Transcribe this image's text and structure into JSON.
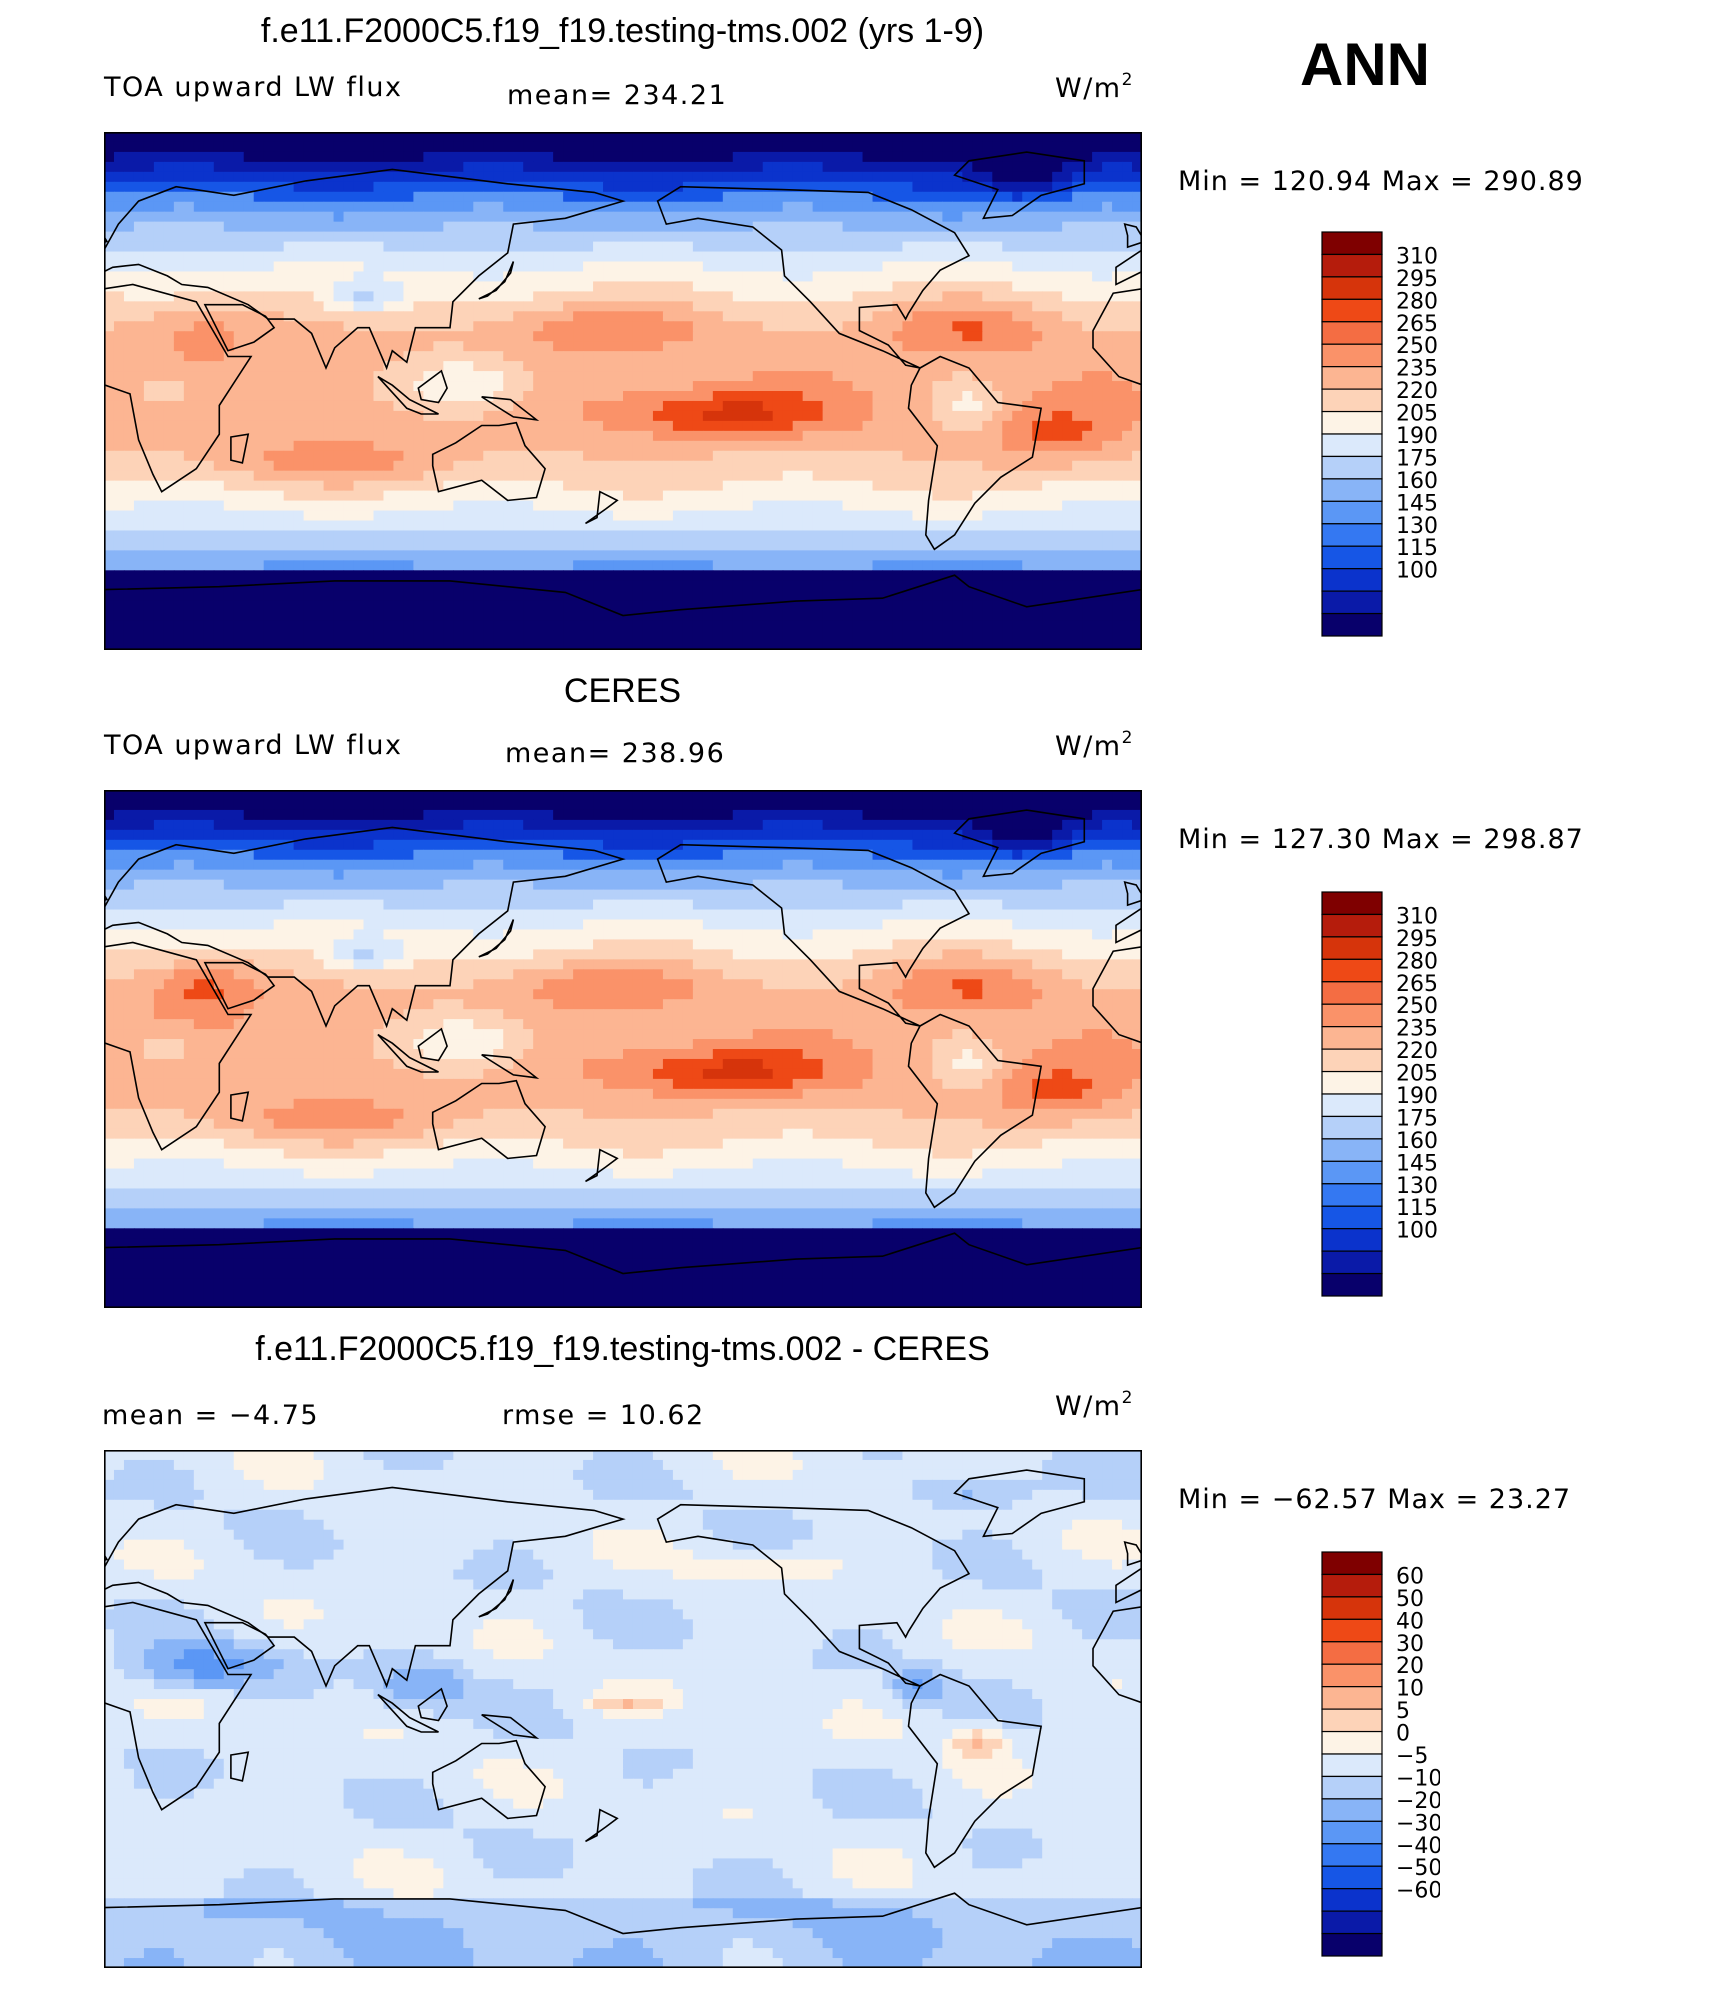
{
  "header": {
    "season": "ANN"
  },
  "colors": {
    "abs_levels": [
      "#08006b",
      "#0a1aa8",
      "#0b33cc",
      "#1656e6",
      "#3478f2",
      "#5b97f5",
      "#88b4f7",
      "#b5d0f9",
      "#dbe9fb",
      "#fdf3e6",
      "#fdd3b8",
      "#fcb592",
      "#fa9269",
      "#f46d43",
      "#ee4916",
      "#d6340b",
      "#b51c0c",
      "#7f0000"
    ],
    "diff_levels": [
      "#08006b",
      "#0a1aa8",
      "#0b33cc",
      "#1656e6",
      "#3478f2",
      "#5b97f5",
      "#88b4f7",
      "#b5d0f9",
      "#dbe9fb",
      "#fdf3e6",
      "#fdd3b8",
      "#fcb592",
      "#fa9269",
      "#f46d43",
      "#ee4916",
      "#d6340b",
      "#b51c0c",
      "#7f0000"
    ],
    "land_outline": "#000000"
  },
  "chart_data": [
    {
      "type": "heatmap",
      "title": "f.e11.F2000C5.f19_f19.testing-tms.002 (yrs 1-9)",
      "left_label": "TOA upward LW flux",
      "center_label": "mean=  234.21",
      "units": "W/m",
      "units_sup": "2",
      "minmax_text": "Min  =  120.94  Max  =  290.89",
      "min": 120.94,
      "max": 290.89,
      "mean": 234.21,
      "colorbar_labels": [
        "310",
        "295",
        "280",
        "265",
        "250",
        "235",
        "220",
        "205",
        "190",
        "175",
        "160",
        "145",
        "130",
        "115",
        "100"
      ],
      "colorbar_levels": [
        100,
        115,
        130,
        145,
        160,
        175,
        190,
        205,
        220,
        235,
        250,
        265,
        280,
        295,
        310
      ]
    },
    {
      "type": "heatmap",
      "title": "CERES",
      "left_label": "TOA upward LW flux",
      "center_label": "mean=  238.96",
      "units": "W/m",
      "units_sup": "2",
      "minmax_text": "Min  =  127.30  Max  =  298.87",
      "min": 127.3,
      "max": 298.87,
      "mean": 238.96,
      "colorbar_labels": [
        "310",
        "295",
        "280",
        "265",
        "250",
        "235",
        "220",
        "205",
        "190",
        "175",
        "160",
        "145",
        "130",
        "115",
        "100"
      ],
      "colorbar_levels": [
        100,
        115,
        130,
        145,
        160,
        175,
        190,
        205,
        220,
        235,
        250,
        265,
        280,
        295,
        310
      ]
    },
    {
      "type": "heatmap",
      "title": "f.e11.F2000C5.f19_f19.testing-tms.002 - CERES",
      "left_label": "mean  =    −4.75",
      "center_label": "rmse  =    10.62",
      "units": "W/m",
      "units_sup": "2",
      "minmax_text": "Min  =  −62.57  Max  =    23.27",
      "min": -62.57,
      "max": 23.27,
      "mean": -4.75,
      "rmse": 10.62,
      "colorbar_labels": [
        "60",
        "50",
        "40",
        "30",
        "20",
        "10",
        "5",
        "0",
        "−5",
        "−10",
        "−20",
        "−30",
        "−40",
        "−50",
        "−60"
      ],
      "colorbar_levels": [
        -60,
        -50,
        -40,
        -30,
        -20,
        -10,
        -5,
        0,
        5,
        10,
        20,
        30,
        40,
        50,
        60
      ]
    }
  ]
}
